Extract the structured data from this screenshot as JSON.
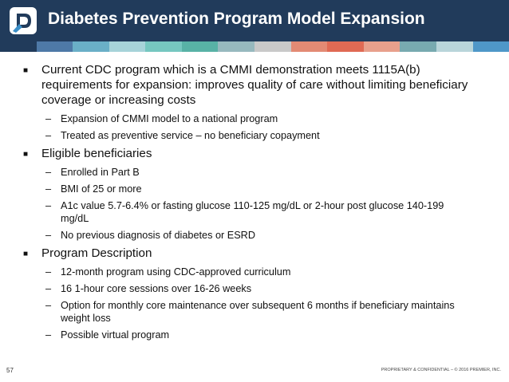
{
  "slide": {
    "title": "Diabetes Prevention Program Model Expansion",
    "page_number": "57",
    "footer": "PROPRIETARY & CONFIDENTIAL – © 2016 PREMIER, INC.",
    "logo_icon": "premier-logo-icon",
    "header_color": "#213b5b",
    "strip_colors": [
      "#213b5b",
      "#4e79a7",
      "#6aafc7",
      "#a7d3d9",
      "#76c7c0",
      "#58b2a6",
      "#97b9be",
      "#c9c9c9",
      "#e38a74",
      "#e06a54",
      "#e8a08c",
      "#78aab0",
      "#b9d5da",
      "#4f97c8"
    ]
  },
  "bullets": [
    {
      "text": "Current CDC program which is a CMMI demonstration meets 1115A(b) requirements for expansion: improves quality of care without limiting beneficiary coverage or increasing costs",
      "subs": [
        "Expansion of CMMI model to a national program",
        "Treated as preventive service – no beneficiary copayment"
      ]
    },
    {
      "text": "Eligible beneficiaries",
      "subs": [
        "Enrolled in Part B",
        "BMI of 25 or more",
        "A1c value 5.7-6.4% or fasting glucose 110-125 mg/dL or 2-hour post glucose 140-199 mg/dL",
        "No previous diagnosis of diabetes or ESRD"
      ]
    },
    {
      "text": "Program Description",
      "subs": [
        "12-month program using CDC-approved curriculum",
        "16 1-hour core sessions over 16-26 weeks",
        "Option for monthly core maintenance over subsequent 6 months if beneficiary maintains weight loss",
        "Possible virtual program"
      ]
    }
  ]
}
